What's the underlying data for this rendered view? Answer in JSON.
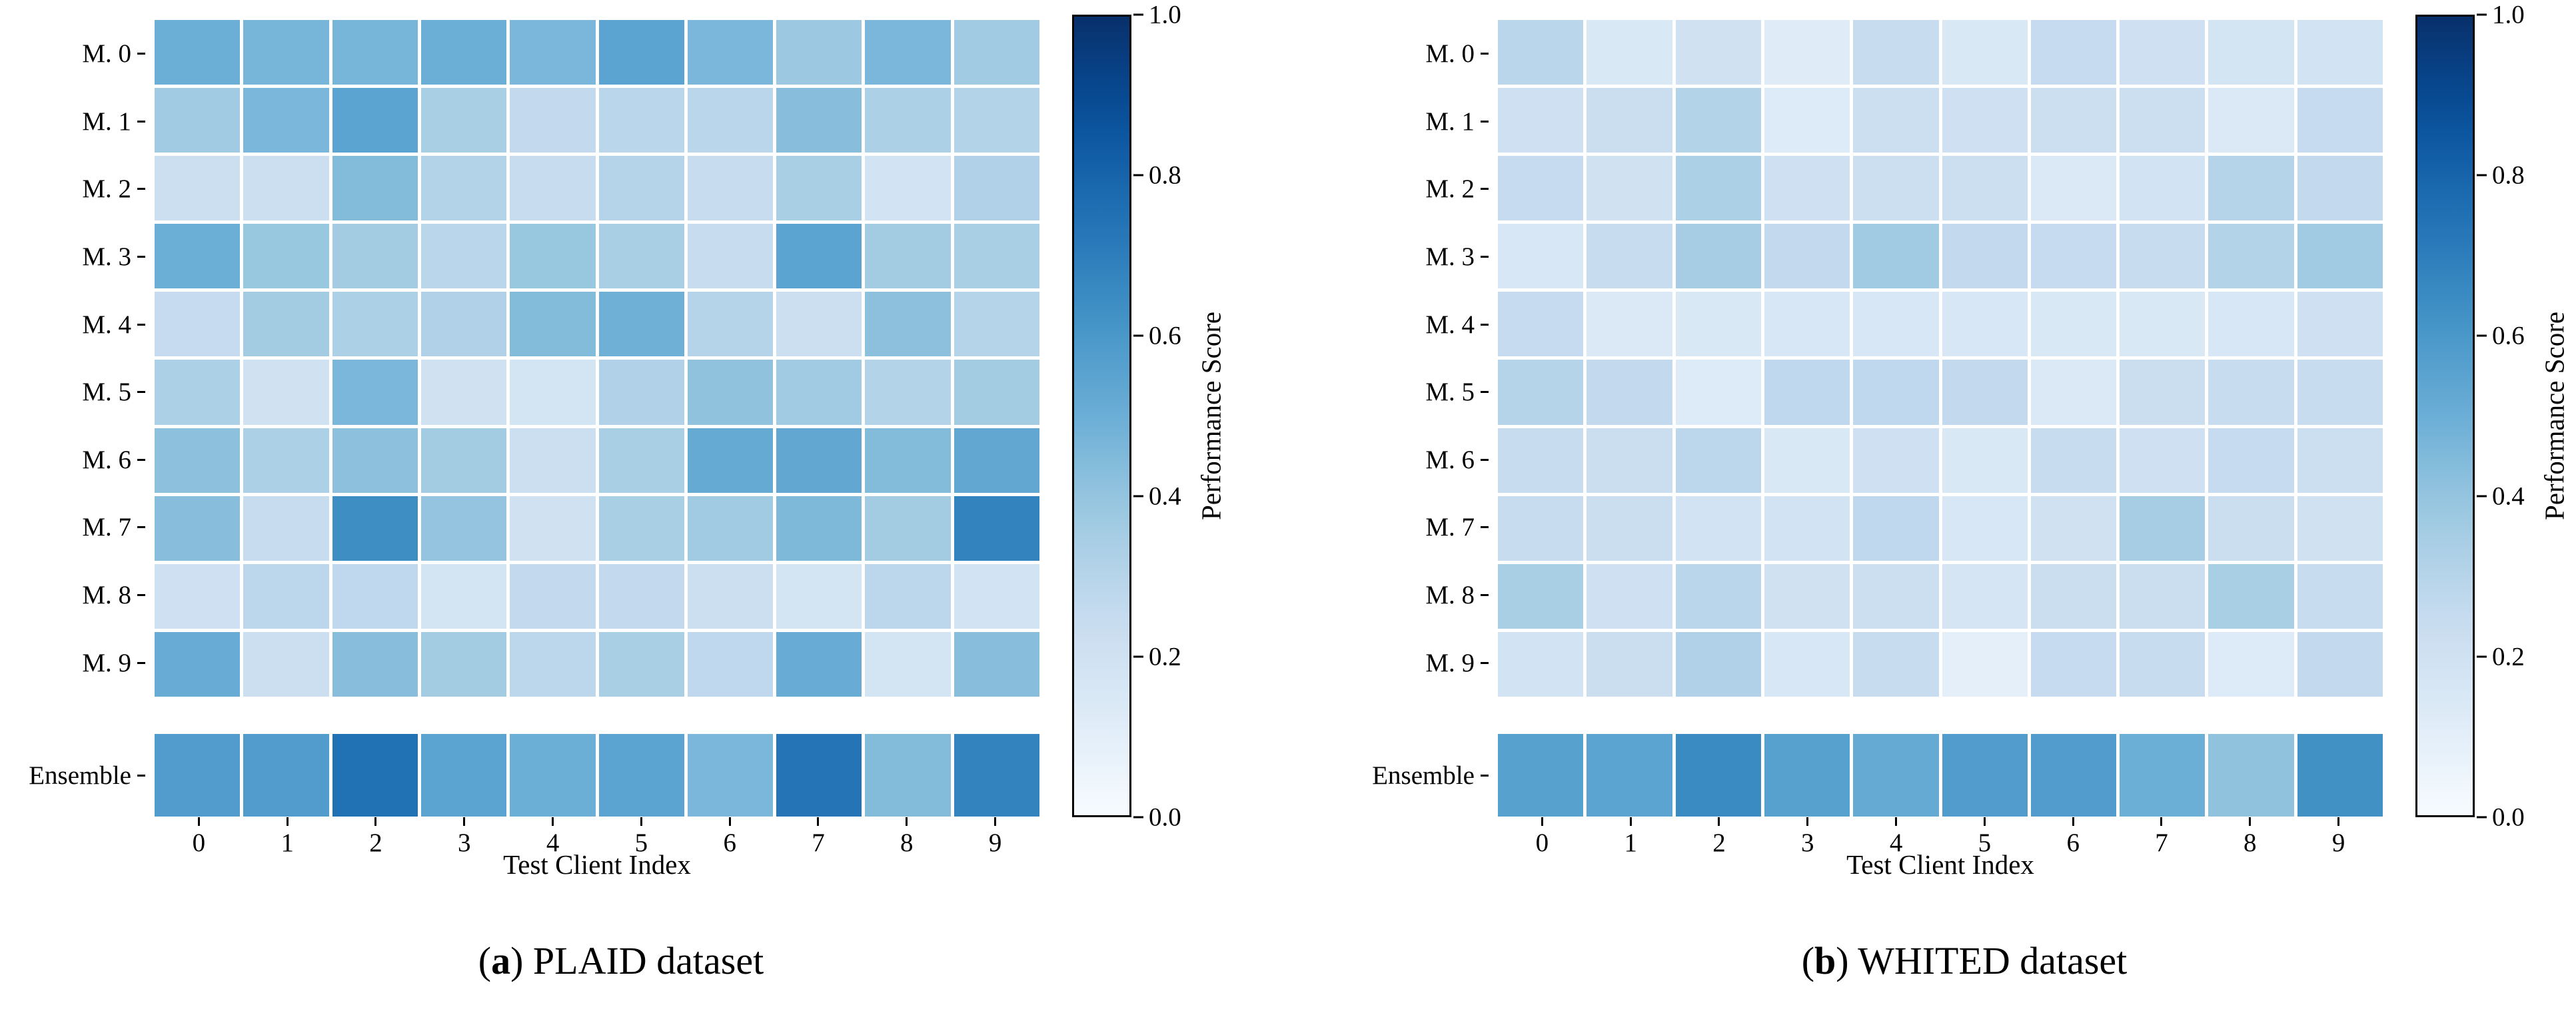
{
  "figure": {
    "x_axis_label": "Test Client Index",
    "x_tick_labels": [
      "0",
      "1",
      "2",
      "3",
      "4",
      "5",
      "6",
      "7",
      "8",
      "9"
    ],
    "row_labels": [
      "M. 0",
      "M. 1",
      "M. 2",
      "M. 3",
      "M. 4",
      "M. 5",
      "M. 6",
      "M. 7",
      "M. 8",
      "M. 9"
    ],
    "ensemble_label": "Ensemble",
    "colorbar": {
      "label": "Performance Score",
      "tick_labels": [
        "1.0",
        "0.8",
        "0.6",
        "0.4",
        "0.2",
        "0.0"
      ],
      "colormap": "Blues",
      "min_color": "#f7fbff",
      "max_color": "#08306b",
      "border_color": "#000000"
    },
    "captions": [
      {
        "open": "(",
        "letter": "a",
        "close": ")",
        "text": " PLAID dataset"
      },
      {
        "open": "(",
        "letter": "b",
        "close": ")",
        "text": " WHITED dataset"
      }
    ]
  },
  "chart_data": [
    {
      "type": "heatmap",
      "title": "(a) PLAID dataset",
      "xlabel": "Test Client Index",
      "x": [
        "0",
        "1",
        "2",
        "3",
        "4",
        "5",
        "6",
        "7",
        "8",
        "9"
      ],
      "row_labels": [
        "M. 0",
        "M. 1",
        "M. 2",
        "M. 3",
        "M. 4",
        "M. 5",
        "M. 6",
        "M. 7",
        "M. 8",
        "M. 9"
      ],
      "ensemble_label": "Ensemble",
      "colorbar_label": "Performance Score",
      "vmin": 0.0,
      "vmax": 1.0,
      "colormap": "Blues",
      "rows": [
        [
          0.5,
          0.47,
          0.47,
          0.5,
          0.46,
          0.55,
          0.46,
          0.38,
          0.46,
          0.37
        ],
        [
          0.37,
          0.46,
          0.55,
          0.34,
          0.26,
          0.29,
          0.29,
          0.43,
          0.33,
          0.31
        ],
        [
          0.22,
          0.22,
          0.44,
          0.31,
          0.24,
          0.3,
          0.24,
          0.34,
          0.19,
          0.32
        ],
        [
          0.5,
          0.39,
          0.36,
          0.29,
          0.39,
          0.34,
          0.24,
          0.55,
          0.36,
          0.34
        ],
        [
          0.25,
          0.36,
          0.33,
          0.32,
          0.44,
          0.49,
          0.3,
          0.22,
          0.42,
          0.3
        ],
        [
          0.33,
          0.2,
          0.46,
          0.2,
          0.18,
          0.32,
          0.41,
          0.37,
          0.31,
          0.36
        ],
        [
          0.42,
          0.33,
          0.42,
          0.36,
          0.22,
          0.34,
          0.52,
          0.53,
          0.44,
          0.53
        ],
        [
          0.43,
          0.24,
          0.64,
          0.4,
          0.2,
          0.34,
          0.37,
          0.45,
          0.36,
          0.68
        ],
        [
          0.21,
          0.28,
          0.27,
          0.18,
          0.26,
          0.26,
          0.22,
          0.18,
          0.28,
          0.19
        ],
        [
          0.51,
          0.22,
          0.43,
          0.36,
          0.28,
          0.34,
          0.27,
          0.51,
          0.18,
          0.43
        ]
      ],
      "ensemble": [
        0.58,
        0.58,
        0.75,
        0.55,
        0.5,
        0.55,
        0.46,
        0.74,
        0.44,
        0.68
      ]
    },
    {
      "type": "heatmap",
      "title": "(b) WHITED dataset",
      "xlabel": "Test Client Index",
      "x": [
        "0",
        "1",
        "2",
        "3",
        "4",
        "5",
        "6",
        "7",
        "8",
        "9"
      ],
      "row_labels": [
        "M. 0",
        "M. 1",
        "M. 2",
        "M. 3",
        "M. 4",
        "M. 5",
        "M. 6",
        "M. 7",
        "M. 8",
        "M. 9"
      ],
      "ensemble_label": "Ensemble",
      "colorbar_label": "Performance Score",
      "vmin": 0.0,
      "vmax": 1.0,
      "colormap": "Blues",
      "rows": [
        [
          0.29,
          0.15,
          0.2,
          0.12,
          0.24,
          0.15,
          0.25,
          0.21,
          0.18,
          0.19
        ],
        [
          0.21,
          0.23,
          0.31,
          0.13,
          0.22,
          0.21,
          0.22,
          0.22,
          0.14,
          0.25
        ],
        [
          0.25,
          0.2,
          0.33,
          0.21,
          0.22,
          0.22,
          0.14,
          0.19,
          0.3,
          0.26
        ],
        [
          0.16,
          0.24,
          0.35,
          0.26,
          0.37,
          0.26,
          0.25,
          0.24,
          0.31,
          0.37
        ],
        [
          0.25,
          0.14,
          0.15,
          0.16,
          0.16,
          0.16,
          0.15,
          0.15,
          0.16,
          0.21
        ],
        [
          0.3,
          0.26,
          0.13,
          0.27,
          0.27,
          0.26,
          0.14,
          0.23,
          0.24,
          0.24
        ],
        [
          0.24,
          0.23,
          0.28,
          0.15,
          0.21,
          0.15,
          0.24,
          0.21,
          0.25,
          0.22
        ],
        [
          0.24,
          0.23,
          0.19,
          0.19,
          0.27,
          0.16,
          0.2,
          0.35,
          0.23,
          0.2
        ],
        [
          0.34,
          0.21,
          0.29,
          0.2,
          0.22,
          0.17,
          0.23,
          0.23,
          0.34,
          0.24
        ],
        [
          0.19,
          0.23,
          0.32,
          0.16,
          0.24,
          0.09,
          0.25,
          0.24,
          0.13,
          0.26
        ]
      ],
      "ensemble": [
        0.56,
        0.55,
        0.65,
        0.56,
        0.52,
        0.58,
        0.58,
        0.5,
        0.41,
        0.63
      ]
    }
  ]
}
